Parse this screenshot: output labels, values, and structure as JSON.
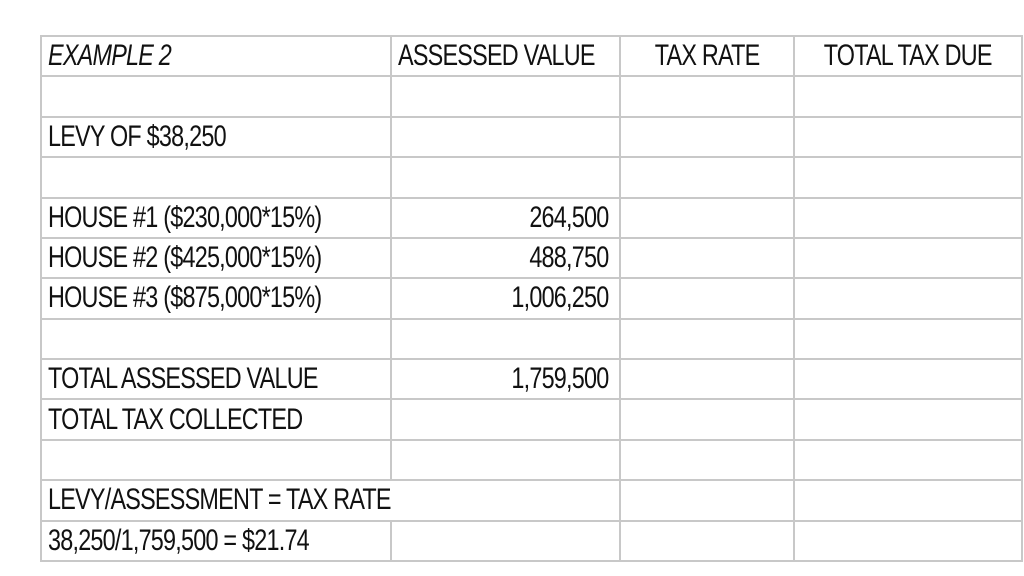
{
  "colors": {
    "background": "#ffffff",
    "grid_line": "#c8c8c8",
    "text": "#111111"
  },
  "table": {
    "column_headers": [
      "EXAMPLE 2",
      "ASSESSED VALUE",
      "TAX RATE",
      "TOTAL TAX DUE"
    ],
    "rows": [
      {
        "label": "EXAMPLE 2",
        "assessed_value": "ASSESSED VALUE",
        "tax_rate": "TAX RATE",
        "total_tax_due": "TOTAL TAX DUE"
      },
      {
        "label": "",
        "assessed_value": "",
        "tax_rate": "",
        "total_tax_due": ""
      },
      {
        "label": "LEVY OF $38,250",
        "assessed_value": "",
        "tax_rate": "",
        "total_tax_due": ""
      },
      {
        "label": "",
        "assessed_value": "",
        "tax_rate": "",
        "total_tax_due": ""
      },
      {
        "label": "HOUSE #1 ($230,000*15%)",
        "assessed_value": "264,500",
        "tax_rate": "",
        "total_tax_due": ""
      },
      {
        "label": "HOUSE #2 ($425,000*15%)",
        "assessed_value": "488,750",
        "tax_rate": "",
        "total_tax_due": ""
      },
      {
        "label": "HOUSE #3 ($875,000*15%)",
        "assessed_value": "1,006,250",
        "tax_rate": "",
        "total_tax_due": ""
      },
      {
        "label": "",
        "assessed_value": "",
        "tax_rate": "",
        "total_tax_due": ""
      },
      {
        "label": "TOTAL ASSESSED VALUE",
        "assessed_value": "1,759,500",
        "tax_rate": "",
        "total_tax_due": ""
      },
      {
        "label": "TOTAL TAX COLLECTED",
        "assessed_value": "",
        "tax_rate": "",
        "total_tax_due": ""
      },
      {
        "label": "",
        "assessed_value": "",
        "tax_rate": "",
        "total_tax_due": ""
      },
      {
        "label": "LEVY/ASSESSMENT = TAX RATE",
        "assessed_value": "",
        "tax_rate": "",
        "total_tax_due": ""
      },
      {
        "label": "38,250/1,759,500 = $21.74",
        "assessed_value": "",
        "tax_rate": "",
        "total_tax_due": ""
      }
    ]
  }
}
